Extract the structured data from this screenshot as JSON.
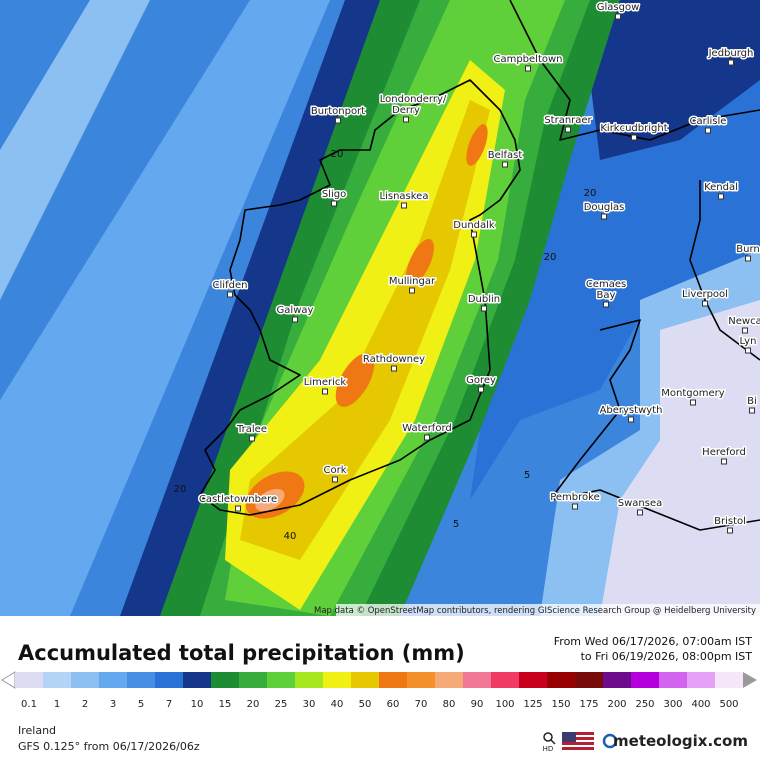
{
  "map": {
    "attribution": "Map data © OpenStreetMap contributors, rendering GIScience Research Group @ Heidelberg University",
    "places": [
      "Glasgow",
      "Jedburgh",
      "Campbeltown",
      "Burtonport",
      "Londonderry/",
      "Derry",
      "Stranraer",
      "Kirkcudbright",
      "Carlisle",
      "Belfast",
      "Sligo",
      "Lisnaskea",
      "Kendal",
      "Douglas",
      "Dundalk",
      "Burn",
      "Clifden",
      "Mullingar",
      "Cemaes",
      "Bay",
      "Liverpool",
      "Dublin",
      "Galway",
      "Newca",
      "Lyn",
      "Rathdowney",
      "Limerick",
      "Gorey",
      "Montgomery",
      "Bi",
      "Aberystwyth",
      "Tralee",
      "Waterford",
      "Hereford",
      "Cork",
      "Pembroke",
      "Swansea",
      "Castletownbere",
      "Bristol"
    ],
    "contour_labels": [
      20,
      20,
      20,
      20,
      40,
      5,
      5
    ]
  },
  "legend": {
    "title": "Accumulated total precipitation (mm)",
    "from": "From Wed 06/17/2026, 07:00am IST",
    "to": "to Fri 06/19/2026, 08:00pm IST",
    "levels": [
      0.1,
      1,
      2,
      3,
      5,
      7,
      10,
      15,
      20,
      25,
      30,
      40,
      50,
      60,
      70,
      80,
      90,
      100,
      125,
      150,
      175,
      200,
      250,
      300,
      400,
      500
    ],
    "colors": [
      "#dcdcf2",
      "#b4d4f6",
      "#8cc0f2",
      "#64a8ef",
      "#468fe4",
      "#2a72d6",
      "#14378c",
      "#1e8c32",
      "#36ad3c",
      "#5fcf3a",
      "#a5e61e",
      "#f0f014",
      "#e6c800",
      "#f07814",
      "#f5912d",
      "#f5aa78",
      "#f07896",
      "#f03c64",
      "#c8001e",
      "#960000",
      "#780a0a",
      "#6e0a8c",
      "#b400dc",
      "#d264f0",
      "#e6a0f5",
      "#f5e6fa"
    ]
  },
  "footer": {
    "region": "Ireland",
    "model": "GFS 0.125° from  06/17/2026/06z",
    "hd": "HD",
    "brand": "meteologix.com"
  }
}
